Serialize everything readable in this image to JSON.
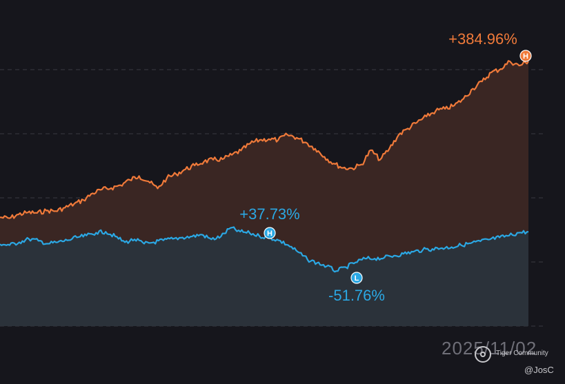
{
  "chart_data": {
    "type": "area",
    "title": "",
    "xlabel": "",
    "ylabel": "",
    "grid": true,
    "series": [
      {
        "color": "#f07a3a",
        "values": [
          60,
          58,
          66,
          70,
          69,
          74,
          73,
          80,
          88,
          96,
          110,
          118,
          121,
          127,
          138,
          146,
          135,
          120,
          142,
          150,
          160,
          168,
          176,
          180,
          181,
          190,
          199,
          214,
          221,
          223,
          221,
          232,
          226,
          216,
          203,
          186,
          172,
          163,
          162,
          170,
          200,
          180,
          203,
          232,
          245,
          258,
          270,
          282,
          286,
          293,
          307,
          328,
          343,
          362,
          369,
          385,
          376,
          385
        ],
        "high": {
          "value": 384.96,
          "label": "+384.96%",
          "marker": "H"
        }
      },
      {
        "color": "#2ba8e4",
        "values": [
          4,
          2,
          8,
          15,
          11,
          5,
          8,
          12,
          18,
          22,
          28,
          30,
          20,
          8,
          14,
          5,
          8,
          12,
          15,
          18,
          20,
          24,
          14,
          20,
          38,
          30,
          27,
          21,
          18,
          12,
          2,
          -12,
          -28,
          -35,
          -42,
          -52,
          -44,
          -34,
          -26,
          -26,
          -24,
          -20,
          -16,
          -12,
          -8,
          -6,
          -4,
          -2,
          2,
          6,
          10,
          14,
          18,
          22,
          28,
          30
        ],
        "high": {
          "value": 37.73,
          "label": "+37.73%",
          "marker": "H"
        },
        "low": {
          "value": -51.76,
          "label": "-51.76%",
          "marker": "L"
        }
      }
    ]
  },
  "footer": {
    "date": "2025/11/02",
    "watermark": "Tiger Community",
    "handle": "@JosC"
  },
  "colors": {
    "background": "#16161c",
    "orange": "#f07a3a",
    "blue": "#2ba8e4",
    "orange_fill": "#3a2623",
    "blue_fill": "#2b323a",
    "grid": "#3a3a42"
  }
}
